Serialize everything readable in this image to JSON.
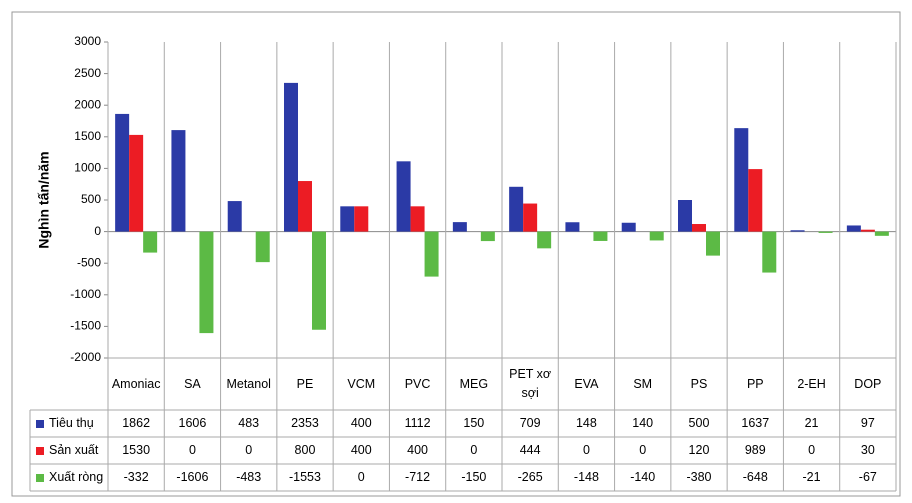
{
  "chart_data": {
    "type": "bar",
    "y_label": "Nghìn tấn/năm",
    "categories": [
      "Amoniac",
      "SA",
      "Metanol",
      "PE",
      "VCM",
      "PVC",
      "MEG",
      "PET xơ sợi",
      "EVA",
      "SM",
      "PS",
      "PP",
      "2-EH",
      "DOP"
    ],
    "series": [
      {
        "name": "Tiêu thụ",
        "color": "#2b3aa6",
        "values": [
          1862,
          1606,
          483,
          2353,
          400,
          1112,
          150,
          709,
          148,
          140,
          500,
          1637,
          21,
          97
        ]
      },
      {
        "name": "Sản xuất",
        "color": "#ec1c24",
        "values": [
          1530,
          0,
          0,
          800,
          400,
          400,
          0,
          444,
          0,
          0,
          120,
          989,
          0,
          30
        ]
      },
      {
        "name": "Xuất ròng",
        "color": "#5cba45",
        "values": [
          -332,
          -1606,
          -483,
          -1553,
          0,
          -712,
          -150,
          -265,
          -148,
          -140,
          -380,
          -648,
          -21,
          -67
        ]
      }
    ],
    "ylim": [
      -2000,
      3000
    ],
    "yticks": [
      -2000,
      -1500,
      -1000,
      -500,
      0,
      500,
      1000,
      1500,
      2000,
      2500,
      3000
    ]
  }
}
